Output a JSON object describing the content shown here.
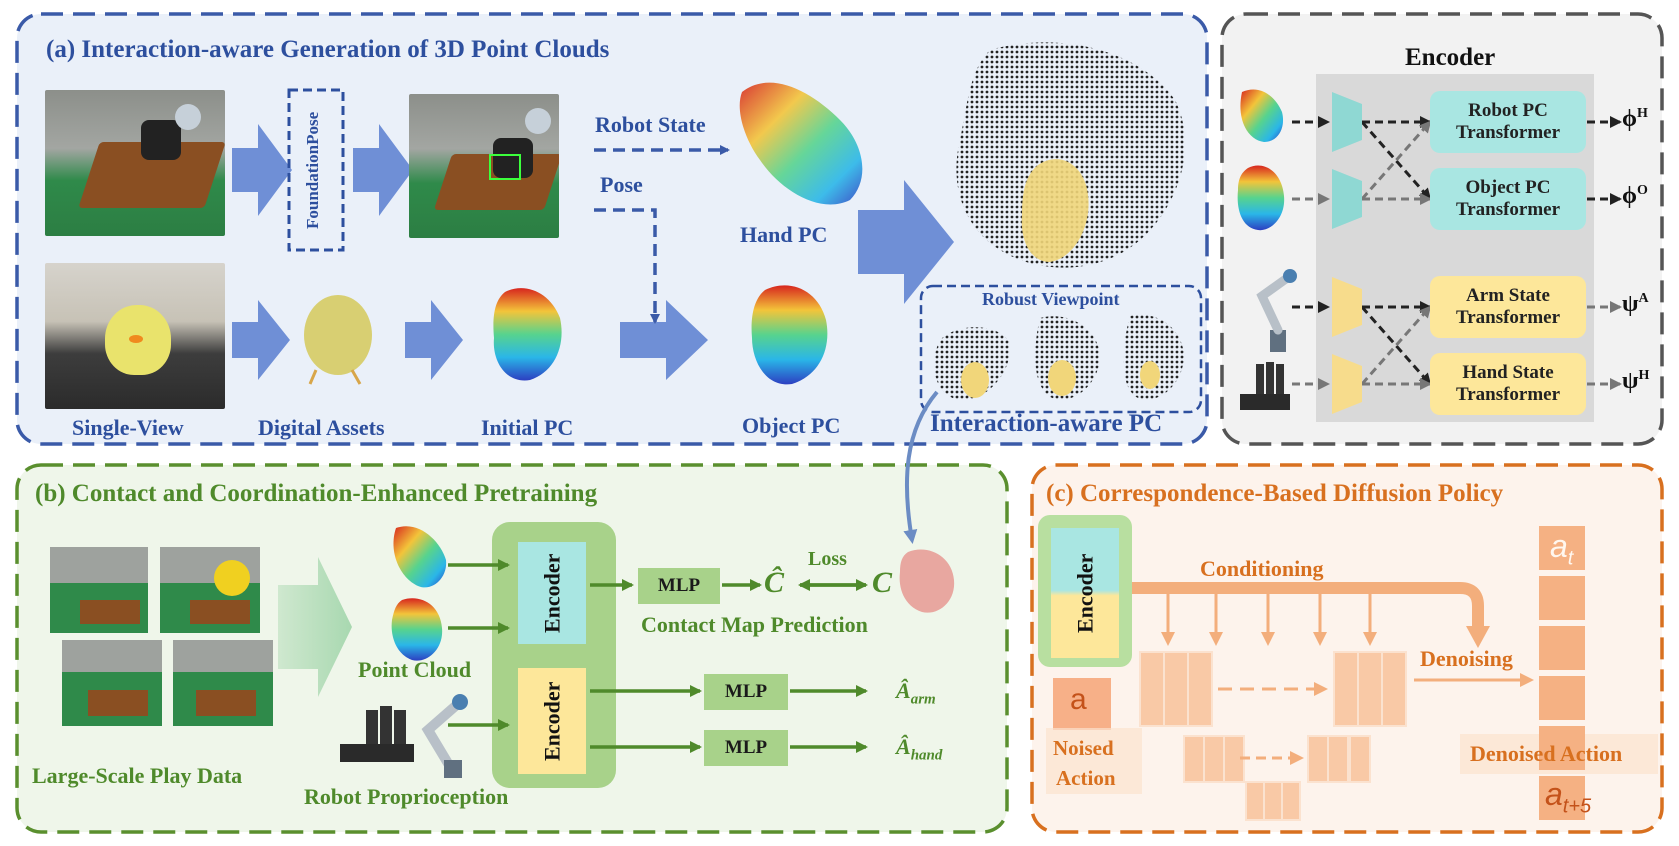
{
  "panel_a": {
    "title": "(a) Interaction-aware Generation of 3D Point Clouds",
    "foundation_pose": "FoundationPose",
    "robot_state": "Robot State",
    "pose": "Pose",
    "hand_pc": "Hand PC",
    "object_pc": "Object PC",
    "single_view": "Single-View",
    "digital_assets": "Digital Assets",
    "initial_pc": "Initial PC",
    "robust_viewpoint": "Robust Viewpoint",
    "interaction_aware_pc": "Interaction-aware PC"
  },
  "encoder_panel": {
    "title": "Encoder",
    "robot_pc_transformer": "Robot PC Transformer",
    "object_pc_transformer": "Object PC Transformer",
    "arm_state_transformer": "Arm State Transformer",
    "hand_state_transformer": "Hand State Transformer",
    "out_phi": "ϕ",
    "out_phi_h_sup": "H",
    "out_phi_o_sup": "O",
    "out_psi": "ψ",
    "out_psi_a_sup": "A",
    "out_psi_h_sup": "H"
  },
  "panel_b": {
    "title": "(b) Contact and Coordination-Enhanced Pretraining",
    "play_data": "Large-Scale Play Data",
    "point_cloud": "Point Cloud",
    "robot_proprio": "Robot Proprioception",
    "encoder": "Encoder",
    "mlp": "MLP",
    "c_hat": "Ĉ",
    "c": "C",
    "loss": "Loss",
    "contact_map_prediction": "Contact Map Prediction",
    "a_hat": "Â",
    "a_arm_sub": "arm",
    "a_hand_sub": "hand"
  },
  "panel_c": {
    "title": "(c) Correspondence-Based Diffusion Policy",
    "encoder": "Encoder",
    "conditioning": "Conditioning",
    "denoising": "Denoising",
    "a": "a",
    "noised_action_line1": "Noised",
    "noised_action_line2": "Action",
    "denoised_action": "Denoised Action",
    "a_t": "a",
    "a_t_sub": "t",
    "a_t5_sub": "t+5"
  },
  "colors": {
    "blue_border": "#3a5aa8",
    "blue_fill": "#eaf0f9",
    "gray_border": "#555555",
    "green_border": "#5a8f2e",
    "green_fill": "#eff6ea",
    "orange_border": "#d8701f",
    "orange_fill": "#fdf3ec",
    "cyan_box": "#a9e6e2",
    "yellow_box": "#fde79a",
    "mlp_green": "#a8d28a",
    "arrow_blue": "#6f8fd6",
    "arrow_orange": "#f3ae7c"
  }
}
